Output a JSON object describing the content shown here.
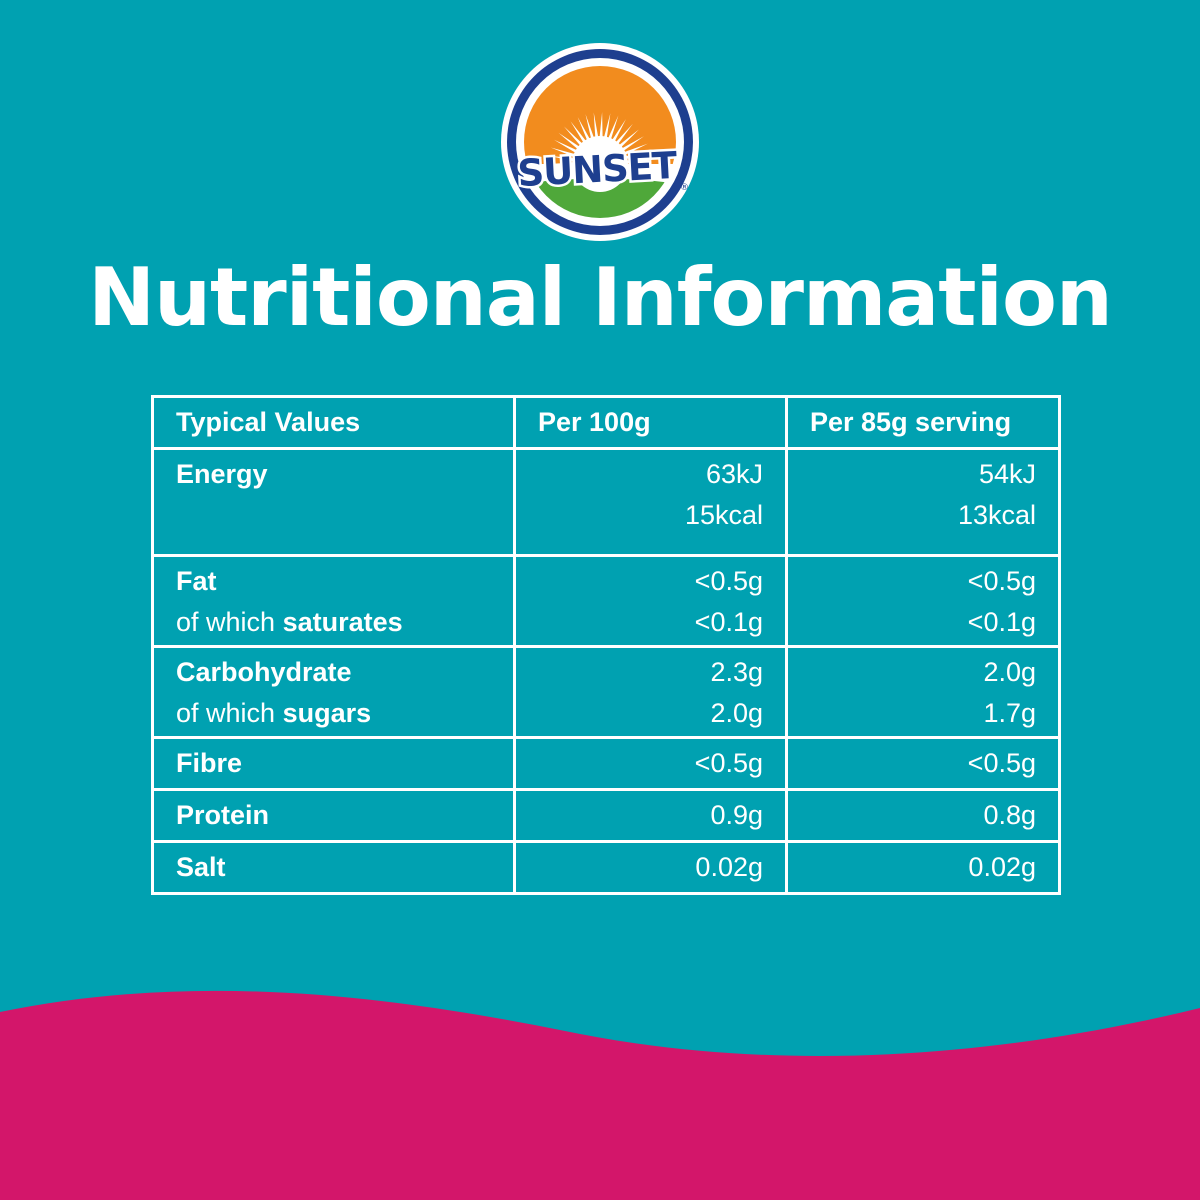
{
  "colors": {
    "background": "#00a1b1",
    "wave": "#d3166a",
    "text": "#ffffff"
  },
  "logo": {
    "text": "SUNSET",
    "registered": "®",
    "colors": {
      "ring": "#1e3f8f",
      "sun": "#f28c1e",
      "field": "#4fa83a"
    }
  },
  "title": "Nutritional Information",
  "table": {
    "headers": [
      "Typical Values",
      "Per 100g",
      "Per 85g serving"
    ],
    "rows": [
      {
        "label": "Energy",
        "per100": [
          "63kJ",
          "15kcal"
        ],
        "perServing": [
          "54kJ",
          "13kcal"
        ]
      },
      {
        "label": "Fat",
        "sub_prefix": "of which ",
        "sub_bold": "saturates",
        "per100": [
          "<0.5g",
          "<0.1g"
        ],
        "perServing": [
          "<0.5g",
          "<0.1g"
        ]
      },
      {
        "label": "Carbohydrate",
        "sub_prefix": "of which ",
        "sub_bold": "sugars",
        "per100": [
          "2.3g",
          "2.0g"
        ],
        "perServing": [
          "2.0g",
          "1.7g"
        ]
      },
      {
        "label": "Fibre",
        "per100": [
          "<0.5g"
        ],
        "perServing": [
          "<0.5g"
        ]
      },
      {
        "label": "Protein",
        "per100": [
          "0.9g"
        ],
        "perServing": [
          "0.8g"
        ]
      },
      {
        "label": "Salt",
        "per100": [
          "0.02g"
        ],
        "perServing": [
          "0.02g"
        ]
      }
    ]
  }
}
